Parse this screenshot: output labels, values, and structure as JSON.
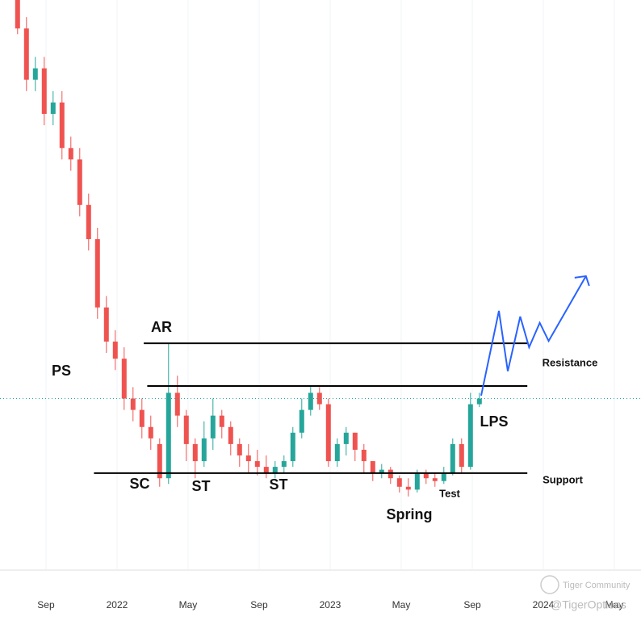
{
  "chart_data": {
    "type": "candlestick",
    "up_color": "#26a69a",
    "down_color": "#ef5350",
    "xlim": [
      -2.59,
      33.5
    ],
    "ylim": [
      0,
      100
    ],
    "xticks": [
      {
        "value": 0,
        "label": "Sep"
      },
      {
        "value": 4,
        "label": "2022"
      },
      {
        "value": 8,
        "label": "May"
      },
      {
        "value": 12,
        "label": "Sep"
      },
      {
        "value": 16,
        "label": "2023"
      },
      {
        "value": 20,
        "label": "May"
      },
      {
        "value": 24,
        "label": "Sep"
      },
      {
        "value": 28,
        "label": "2024"
      },
      {
        "value": 32,
        "label": "May"
      }
    ],
    "grid": true,
    "x": [
      -1.6,
      -1.1,
      -0.6,
      -0.1,
      0.4,
      0.9,
      1.4,
      1.9,
      2.4,
      2.9,
      3.4,
      3.9,
      4.4,
      4.9,
      5.4,
      5.9,
      6.4,
      6.9,
      7.4,
      7.9,
      8.4,
      8.9,
      9.4,
      9.9,
      10.4,
      10.9,
      11.4,
      11.9,
      12.4,
      12.9,
      13.4,
      13.9,
      14.4,
      14.9,
      15.4,
      15.9,
      16.4,
      16.9,
      17.4,
      17.9,
      18.4,
      18.9,
      19.4,
      19.9,
      20.4,
      20.9,
      21.4,
      21.9,
      22.4,
      22.9,
      23.4,
      23.9,
      24.4
    ],
    "open": [
      100,
      95,
      86,
      88,
      80,
      82,
      74,
      72,
      64,
      58,
      46,
      40,
      37,
      30,
      28,
      25,
      22,
      16,
      31,
      27,
      22,
      19,
      23,
      27,
      25,
      22,
      20,
      19,
      18,
      17,
      18,
      19,
      24,
      28,
      31,
      29,
      19,
      22,
      24,
      21,
      19,
      17,
      17.5,
      16,
      14.5,
      14,
      17,
      16,
      15.5,
      17,
      22,
      18,
      29
    ],
    "high": [
      100,
      97,
      90,
      90,
      84,
      84,
      76,
      74,
      66,
      60,
      48,
      42,
      39,
      32,
      30,
      27,
      23,
      39.7,
      34,
      28,
      23,
      26,
      30,
      28,
      26,
      23,
      22,
      21,
      20,
      19,
      20,
      25,
      30,
      32.3,
      32,
      30,
      23,
      25,
      24,
      22,
      19,
      18.5,
      18,
      16.5,
      16,
      17.5,
      17.5,
      17,
      18,
      23,
      23,
      31,
      31
    ],
    "low": [
      94,
      84,
      84,
      78,
      78,
      72,
      70,
      62,
      56,
      44,
      38,
      35,
      28,
      26,
      23,
      21,
      14.5,
      15,
      25,
      19,
      16,
      18,
      21,
      23,
      20,
      18,
      17,
      16.5,
      16,
      16,
      17,
      18,
      23,
      27,
      28,
      18,
      18,
      20,
      19,
      17,
      15.5,
      16,
      15,
      13.5,
      12.8,
      13.5,
      15,
      14.5,
      15,
      16.5,
      17,
      17.5,
      28.5
    ],
    "close": [
      95,
      86,
      88,
      80,
      82,
      74,
      72,
      64,
      58,
      46,
      40,
      37,
      30,
      28,
      25,
      23,
      16,
      31,
      27,
      22,
      19,
      23,
      27,
      25,
      22,
      20,
      19,
      18,
      17,
      18,
      19,
      24,
      28,
      31,
      29,
      19,
      22,
      24,
      21,
      19,
      17,
      17.5,
      16,
      14.5,
      14,
      17,
      16,
      15.5,
      17,
      22,
      18,
      29,
      30
    ],
    "levels": [
      {
        "value": 39.7,
        "x_start": 5.5,
        "x_end": 27.1
      },
      {
        "value": 32.2,
        "x_start": 5.7,
        "x_end": 27.1
      },
      {
        "value": 16.9,
        "x_start": 2.7,
        "x_end": 27.1
      }
    ],
    "forecast": {
      "color": "#2962ff",
      "x": [
        24.5,
        25.5,
        26.0,
        26.7,
        27.2,
        27.8,
        28.3,
        30.4
      ],
      "y": [
        30.5,
        45.4,
        34.8,
        44.4,
        39.0,
        43.3,
        40.1,
        51.5
      ]
    },
    "annotations": [
      "AR",
      "PS",
      "SC",
      "ST",
      "ST",
      "Spring",
      "Test",
      "LPS",
      "Resistance",
      "Support"
    ],
    "watermark": [
      "Tiger Community",
      "@TigerOptions"
    ]
  }
}
